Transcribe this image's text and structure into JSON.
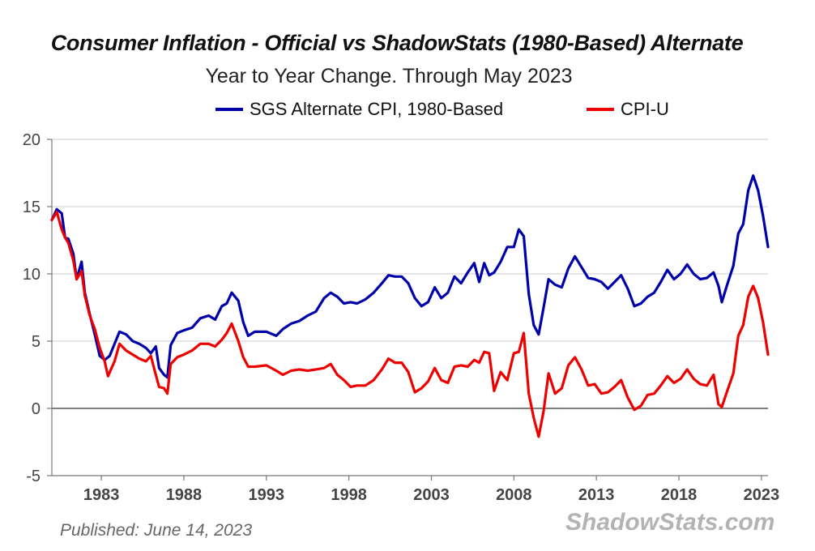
{
  "chart_data": {
    "type": "line",
    "title": "Consumer Inflation - Official vs ShadowStats (1980-Based) Alternate",
    "subtitle": "Year to Year Change. Through May 2023",
    "xlim": [
      1980.0,
      2023.4
    ],
    "ylim": [
      -5,
      20
    ],
    "y_ticks": [
      20,
      15,
      10,
      5,
      0,
      -5
    ],
    "x_ticks": [
      1983,
      1988,
      1993,
      1998,
      2003,
      2008,
      2013,
      2018,
      2023
    ],
    "grid": true,
    "legend_position": "top",
    "series": [
      {
        "name": "SGS Alternate CPI, 1980-Based",
        "color": "#0000aa",
        "points": [
          [
            1980.0,
            14.0
          ],
          [
            1980.3,
            14.8
          ],
          [
            1980.6,
            14.5
          ],
          [
            1980.8,
            12.7
          ],
          [
            1981.0,
            12.6
          ],
          [
            1981.3,
            11.5
          ],
          [
            1981.5,
            9.6
          ],
          [
            1981.8,
            10.9
          ],
          [
            1982.0,
            8.6
          ],
          [
            1982.3,
            7.0
          ],
          [
            1982.6,
            5.5
          ],
          [
            1982.9,
            3.9
          ],
          [
            1983.2,
            3.6
          ],
          [
            1983.5,
            3.9
          ],
          [
            1983.8,
            4.8
          ],
          [
            1984.1,
            5.7
          ],
          [
            1984.5,
            5.5
          ],
          [
            1984.9,
            5.0
          ],
          [
            1985.3,
            4.8
          ],
          [
            1985.7,
            4.5
          ],
          [
            1986.0,
            4.1
          ],
          [
            1986.3,
            4.6
          ],
          [
            1986.5,
            3.0
          ],
          [
            1986.8,
            2.5
          ],
          [
            1987.0,
            2.3
          ],
          [
            1987.2,
            4.7
          ],
          [
            1987.6,
            5.6
          ],
          [
            1988.0,
            5.8
          ],
          [
            1988.5,
            6.0
          ],
          [
            1989.0,
            6.7
          ],
          [
            1989.5,
            6.9
          ],
          [
            1989.9,
            6.6
          ],
          [
            1990.3,
            7.6
          ],
          [
            1990.6,
            7.8
          ],
          [
            1990.9,
            8.6
          ],
          [
            1991.3,
            8.0
          ],
          [
            1991.6,
            6.4
          ],
          [
            1991.9,
            5.4
          ],
          [
            1992.3,
            5.7
          ],
          [
            1993.0,
            5.7
          ],
          [
            1993.6,
            5.4
          ],
          [
            1994.0,
            5.9
          ],
          [
            1994.5,
            6.3
          ],
          [
            1995.0,
            6.5
          ],
          [
            1995.5,
            6.9
          ],
          [
            1996.0,
            7.2
          ],
          [
            1996.5,
            8.2
          ],
          [
            1996.9,
            8.6
          ],
          [
            1997.3,
            8.3
          ],
          [
            1997.7,
            7.8
          ],
          [
            1998.1,
            7.9
          ],
          [
            1998.5,
            7.8
          ],
          [
            1999.0,
            8.1
          ],
          [
            1999.5,
            8.6
          ],
          [
            2000.0,
            9.3
          ],
          [
            2000.4,
            9.9
          ],
          [
            2000.8,
            9.8
          ],
          [
            2001.2,
            9.8
          ],
          [
            2001.6,
            9.3
          ],
          [
            2002.0,
            8.2
          ],
          [
            2002.4,
            7.6
          ],
          [
            2002.8,
            7.9
          ],
          [
            2003.2,
            9.0
          ],
          [
            2003.6,
            8.2
          ],
          [
            2004.0,
            8.6
          ],
          [
            2004.4,
            9.8
          ],
          [
            2004.8,
            9.3
          ],
          [
            2005.2,
            10.1
          ],
          [
            2005.6,
            10.8
          ],
          [
            2005.9,
            9.4
          ],
          [
            2006.2,
            10.8
          ],
          [
            2006.5,
            9.9
          ],
          [
            2006.8,
            10.1
          ],
          [
            2007.2,
            10.9
          ],
          [
            2007.6,
            12.0
          ],
          [
            2008.0,
            12.0
          ],
          [
            2008.3,
            13.3
          ],
          [
            2008.6,
            12.8
          ],
          [
            2008.9,
            8.5
          ],
          [
            2009.2,
            6.2
          ],
          [
            2009.5,
            5.5
          ],
          [
            2009.8,
            7.5
          ],
          [
            2010.1,
            9.6
          ],
          [
            2010.5,
            9.2
          ],
          [
            2010.9,
            9.0
          ],
          [
            2011.3,
            10.4
          ],
          [
            2011.7,
            11.3
          ],
          [
            2012.1,
            10.5
          ],
          [
            2012.5,
            9.7
          ],
          [
            2012.9,
            9.6
          ],
          [
            2013.3,
            9.4
          ],
          [
            2013.7,
            8.9
          ],
          [
            2014.1,
            9.4
          ],
          [
            2014.5,
            9.9
          ],
          [
            2014.9,
            8.9
          ],
          [
            2015.3,
            7.6
          ],
          [
            2015.7,
            7.8
          ],
          [
            2016.1,
            8.3
          ],
          [
            2016.5,
            8.6
          ],
          [
            2016.9,
            9.4
          ],
          [
            2017.3,
            10.3
          ],
          [
            2017.7,
            9.6
          ],
          [
            2018.1,
            10.0
          ],
          [
            2018.5,
            10.7
          ],
          [
            2018.9,
            10.0
          ],
          [
            2019.3,
            9.6
          ],
          [
            2019.7,
            9.7
          ],
          [
            2020.1,
            10.1
          ],
          [
            2020.4,
            9.1
          ],
          [
            2020.6,
            7.9
          ],
          [
            2020.9,
            9.1
          ],
          [
            2021.3,
            10.6
          ],
          [
            2021.6,
            13.0
          ],
          [
            2021.9,
            13.7
          ],
          [
            2022.2,
            16.2
          ],
          [
            2022.5,
            17.3
          ],
          [
            2022.8,
            16.2
          ],
          [
            2023.1,
            14.3
          ],
          [
            2023.4,
            12.0
          ]
        ]
      },
      {
        "name": "CPI-U",
        "color": "#ee0000",
        "points": [
          [
            1980.0,
            14.0
          ],
          [
            1980.3,
            14.6
          ],
          [
            1980.6,
            13.3
          ],
          [
            1980.8,
            12.7
          ],
          [
            1981.0,
            12.3
          ],
          [
            1981.3,
            11.0
          ],
          [
            1981.5,
            9.6
          ],
          [
            1981.8,
            10.2
          ],
          [
            1982.0,
            8.4
          ],
          [
            1982.3,
            6.9
          ],
          [
            1982.6,
            5.9
          ],
          [
            1982.9,
            4.5
          ],
          [
            1983.2,
            3.5
          ],
          [
            1983.4,
            2.4
          ],
          [
            1983.8,
            3.5
          ],
          [
            1984.1,
            4.8
          ],
          [
            1984.5,
            4.3
          ],
          [
            1984.9,
            4.0
          ],
          [
            1985.3,
            3.7
          ],
          [
            1985.7,
            3.5
          ],
          [
            1986.0,
            3.9
          ],
          [
            1986.3,
            2.5
          ],
          [
            1986.5,
            1.6
          ],
          [
            1986.8,
            1.5
          ],
          [
            1987.0,
            1.1
          ],
          [
            1987.2,
            3.3
          ],
          [
            1987.6,
            3.8
          ],
          [
            1988.0,
            4.0
          ],
          [
            1988.5,
            4.3
          ],
          [
            1989.0,
            4.8
          ],
          [
            1989.5,
            4.8
          ],
          [
            1989.9,
            4.6
          ],
          [
            1990.3,
            5.1
          ],
          [
            1990.6,
            5.6
          ],
          [
            1990.9,
            6.3
          ],
          [
            1991.3,
            5.0
          ],
          [
            1991.6,
            3.8
          ],
          [
            1991.9,
            3.1
          ],
          [
            1992.3,
            3.1
          ],
          [
            1993.0,
            3.2
          ],
          [
            1993.6,
            2.8
          ],
          [
            1994.0,
            2.5
          ],
          [
            1994.5,
            2.8
          ],
          [
            1995.0,
            2.9
          ],
          [
            1995.5,
            2.8
          ],
          [
            1996.0,
            2.9
          ],
          [
            1996.5,
            3.0
          ],
          [
            1996.9,
            3.3
          ],
          [
            1997.3,
            2.5
          ],
          [
            1997.7,
            2.1
          ],
          [
            1998.1,
            1.6
          ],
          [
            1998.5,
            1.7
          ],
          [
            1999.0,
            1.7
          ],
          [
            1999.5,
            2.1
          ],
          [
            2000.0,
            2.9
          ],
          [
            2000.4,
            3.7
          ],
          [
            2000.8,
            3.4
          ],
          [
            2001.2,
            3.4
          ],
          [
            2001.6,
            2.7
          ],
          [
            2002.0,
            1.2
          ],
          [
            2002.4,
            1.5
          ],
          [
            2002.8,
            2.0
          ],
          [
            2003.2,
            3.0
          ],
          [
            2003.6,
            2.1
          ],
          [
            2004.0,
            1.9
          ],
          [
            2004.4,
            3.1
          ],
          [
            2004.8,
            3.2
          ],
          [
            2005.2,
            3.1
          ],
          [
            2005.6,
            3.6
          ],
          [
            2005.9,
            3.4
          ],
          [
            2006.2,
            4.2
          ],
          [
            2006.5,
            4.1
          ],
          [
            2006.8,
            1.3
          ],
          [
            2007.2,
            2.7
          ],
          [
            2007.6,
            2.1
          ],
          [
            2008.0,
            4.1
          ],
          [
            2008.3,
            4.2
          ],
          [
            2008.6,
            5.6
          ],
          [
            2008.9,
            1.1
          ],
          [
            2009.2,
            -0.7
          ],
          [
            2009.5,
            -2.1
          ],
          [
            2009.8,
            -0.2
          ],
          [
            2010.1,
            2.6
          ],
          [
            2010.5,
            1.1
          ],
          [
            2010.9,
            1.5
          ],
          [
            2011.3,
            3.2
          ],
          [
            2011.7,
            3.8
          ],
          [
            2012.1,
            2.9
          ],
          [
            2012.5,
            1.7
          ],
          [
            2012.9,
            1.8
          ],
          [
            2013.3,
            1.1
          ],
          [
            2013.7,
            1.2
          ],
          [
            2014.1,
            1.6
          ],
          [
            2014.5,
            2.1
          ],
          [
            2014.9,
            0.8
          ],
          [
            2015.3,
            -0.1
          ],
          [
            2015.7,
            0.2
          ],
          [
            2016.1,
            1.0
          ],
          [
            2016.5,
            1.1
          ],
          [
            2016.9,
            1.7
          ],
          [
            2017.3,
            2.4
          ],
          [
            2017.7,
            1.9
          ],
          [
            2018.1,
            2.2
          ],
          [
            2018.5,
            2.9
          ],
          [
            2018.9,
            2.2
          ],
          [
            2019.3,
            1.8
          ],
          [
            2019.7,
            1.7
          ],
          [
            2020.1,
            2.5
          ],
          [
            2020.4,
            0.3
          ],
          [
            2020.6,
            0.1
          ],
          [
            2020.9,
            1.2
          ],
          [
            2021.3,
            2.6
          ],
          [
            2021.6,
            5.4
          ],
          [
            2021.9,
            6.2
          ],
          [
            2022.2,
            8.3
          ],
          [
            2022.5,
            9.1
          ],
          [
            2022.8,
            8.2
          ],
          [
            2023.1,
            6.4
          ],
          [
            2023.4,
            4.0
          ]
        ]
      }
    ]
  },
  "footer": {
    "published": "Published: June 14, 2023",
    "brand": "ShadowStats.com"
  }
}
